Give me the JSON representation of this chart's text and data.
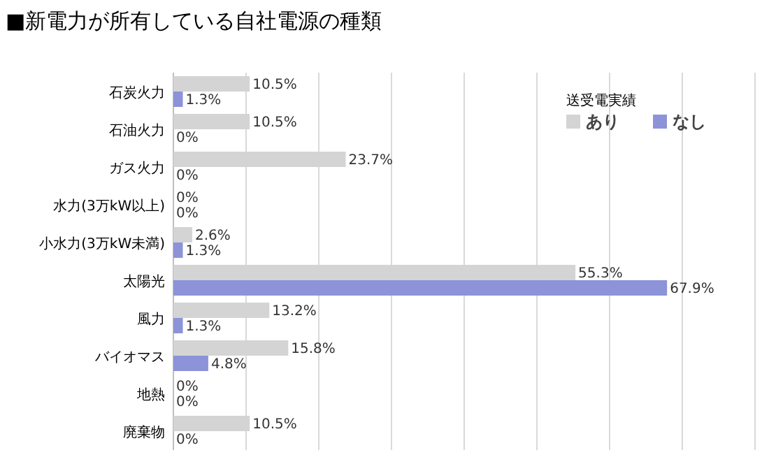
{
  "chart_data": {
    "type": "bar",
    "orientation": "horizontal",
    "title": "■新電力が所有している自社電源の種類",
    "categories": [
      "石炭火力",
      "石油火力",
      "ガス火力",
      "水力(3万kW以上)",
      "小水力(3万kW未満)",
      "太陽光",
      "風力",
      "バイオマス",
      "地熱",
      "廃棄物"
    ],
    "legend_title": "送受電実績",
    "legend": "top right",
    "grid": "x",
    "tick_labels": "y",
    "xlim": [
      0,
      80
    ],
    "xticks": [
      {
        "value": 0,
        "label": null
      },
      {
        "value": 10,
        "label": null
      },
      {
        "value": 20,
        "label": null
      },
      {
        "value": 30,
        "label": null
      },
      {
        "value": 40,
        "label": null
      },
      {
        "value": 50,
        "label": null
      },
      {
        "value": 60,
        "label": null
      },
      {
        "value": 70,
        "label": null
      },
      {
        "value": 80,
        "label": null
      }
    ],
    "series": [
      {
        "name": "あり",
        "color": "#d4d4d4",
        "values": [
          10.5,
          10.5,
          23.7,
          0,
          2.6,
          55.3,
          13.2,
          15.8,
          0,
          10.5
        ],
        "value_labels": [
          "10.5%",
          "10.5%",
          "23.7%",
          "0%",
          "2.6%",
          "55.3%",
          "13.2%",
          "15.8%",
          "0%",
          "10.5%"
        ]
      },
      {
        "name": "なし",
        "color": "#8c93d9",
        "values": [
          1.3,
          0,
          0,
          0,
          1.3,
          67.9,
          1.3,
          4.8,
          0,
          0
        ],
        "value_labels": [
          "1.3%",
          "0%",
          "0%",
          "0%",
          "1.3%",
          "67.9%",
          "1.3%",
          "4.8%",
          "0%",
          "0%"
        ]
      }
    ]
  }
}
